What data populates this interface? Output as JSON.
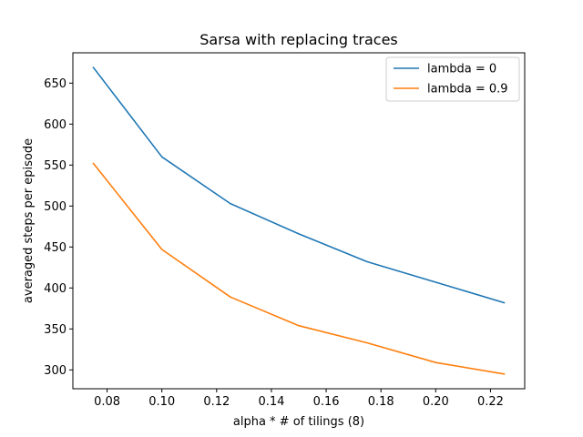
{
  "chart_data": {
    "type": "line",
    "title": "Sarsa with replacing traces",
    "xlabel": "alpha * # of tilings (8)",
    "ylabel": "averaged steps per episode",
    "x": [
      0.075,
      0.1,
      0.125,
      0.15,
      0.175,
      0.2,
      0.225
    ],
    "xlim": [
      0.0675,
      0.2325
    ],
    "ylim": [
      277,
      687
    ],
    "xticks": [
      "0.08",
      "0.10",
      "0.12",
      "0.14",
      "0.16",
      "0.18",
      "0.20",
      "0.22"
    ],
    "yticks": [
      "300",
      "350",
      "400",
      "450",
      "500",
      "550",
      "600",
      "650"
    ],
    "grid": false,
    "legend_position": "top-right",
    "series": [
      {
        "name": "lambda = 0",
        "color": "#1f77b4",
        "values": [
          669,
          560,
          503,
          466,
          432,
          407,
          382
        ]
      },
      {
        "name": "lambda = 0.9",
        "color": "#ff7f0e",
        "values": [
          552,
          447,
          389,
          354,
          333,
          309,
          295
        ]
      }
    ]
  }
}
